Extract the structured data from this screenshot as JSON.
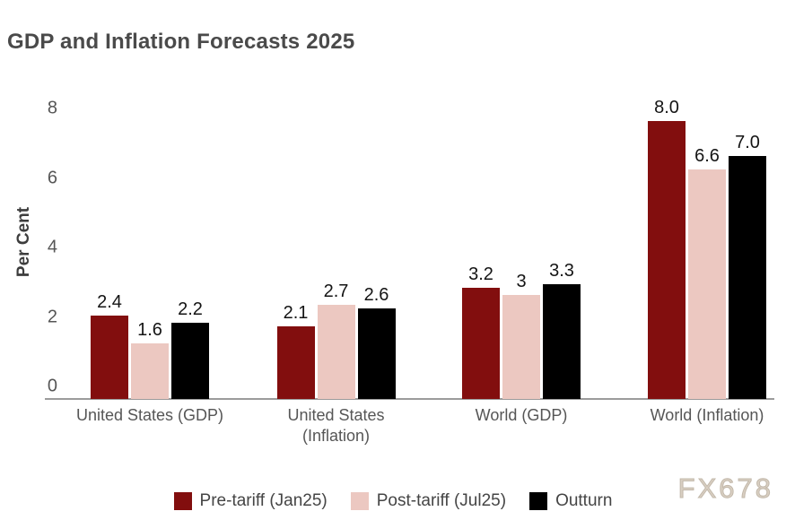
{
  "title": "GDP and Inflation Forecasts 2025",
  "watermark": "FX678",
  "chart_data": {
    "type": "bar",
    "title": "GDP and Inflation Forecasts 2025",
    "xlabel": "",
    "ylabel": "Per Cent",
    "ylim": [
      0,
      8
    ],
    "yticks": [
      0,
      2,
      4,
      6,
      8
    ],
    "grid": false,
    "legend_position": "bottom",
    "categories": [
      "United States (GDP)",
      "United States\n(Inflation)",
      "World (GDP)",
      "World (Inflation)"
    ],
    "series": [
      {
        "name": "Pre-tariff (Jan25)",
        "color": "#820e0e",
        "values": [
          2.4,
          2.1,
          3.2,
          8.0
        ],
        "labels": [
          "2.4",
          "2.1",
          "3.2",
          "8.0"
        ]
      },
      {
        "name": "Post-tariff (Jul25)",
        "color": "#ecc8c1",
        "values": [
          1.6,
          2.7,
          3.0,
          6.6
        ],
        "labels": [
          "1.6",
          "2.7",
          "3",
          "6.6"
        ]
      },
      {
        "name": "Outturn",
        "color": "#000000",
        "values": [
          2.2,
          2.6,
          3.3,
          7.0
        ],
        "labels": [
          "2.2",
          "2.6",
          "3.3",
          "7.0"
        ]
      }
    ]
  }
}
